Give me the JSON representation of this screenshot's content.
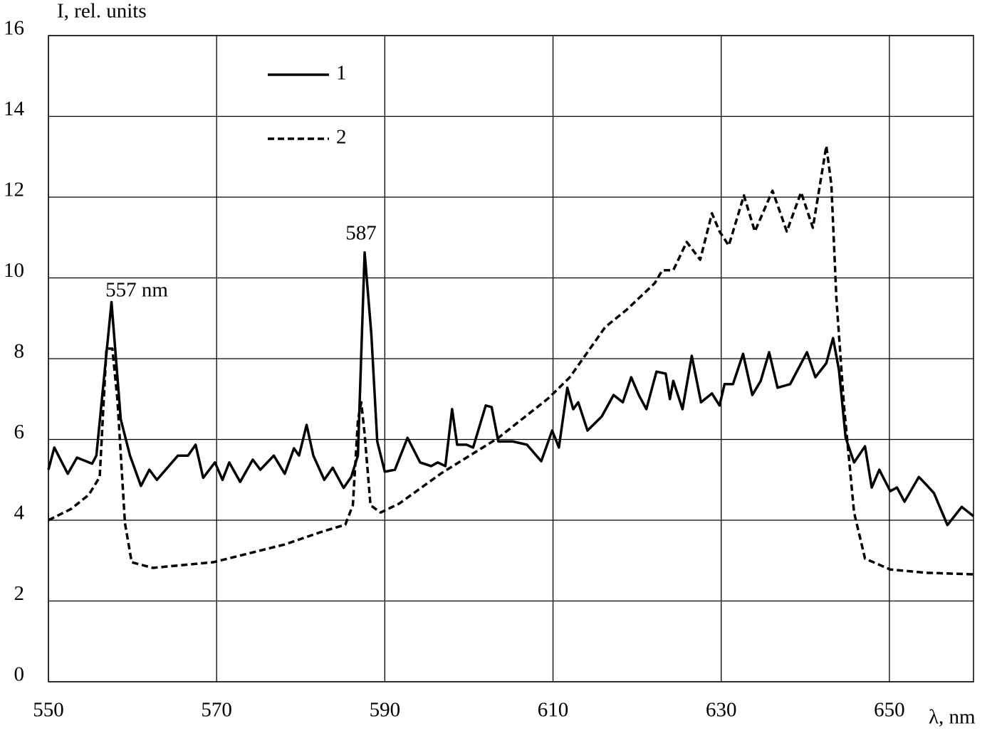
{
  "chart_data": {
    "type": "line",
    "ylabel": "I, rel. units",
    "xlabel": "λ, nm",
    "annotations": [
      "557 nm",
      "587"
    ],
    "xlim": [
      550,
      660
    ],
    "xticks": [
      550,
      570,
      590,
      610,
      630,
      650
    ],
    "ylim": [
      0,
      16
    ],
    "yticks": [
      0,
      2,
      4,
      6,
      8,
      10,
      12,
      14,
      16
    ],
    "grid": true,
    "series": [
      {
        "name": "1",
        "color": "#000000",
        "line_style": "solid",
        "x": [
          550,
          550.7,
          552.3,
          553.4,
          555.2,
          555.7,
          557.5,
          558.6,
          559.7,
          561,
          562,
          562.9,
          565.4,
          566.6,
          567.5,
          568.4,
          569.8,
          570.7,
          571.5,
          572.8,
          574.3,
          575.2,
          576.8,
          578.1,
          579.2,
          579.8,
          580.7,
          581.5,
          582.8,
          583.8,
          585.1,
          586,
          586.8,
          587.6,
          588.4,
          589.1,
          590,
          591.2,
          592.7,
          594.2,
          595.5,
          596.3,
          597.2,
          598,
          598.6,
          599.7,
          600.5,
          602,
          602.7,
          603.5,
          605.2,
          606.9,
          608.6,
          609.9,
          610.7,
          611.7,
          612.4,
          613,
          614.1,
          615.8,
          617.2,
          618.3,
          619.3,
          620.2,
          621.1,
          622.3,
          623.4,
          623.9,
          624.3,
          625.4,
          626.5,
          627.6,
          628.9,
          629.8,
          630.4,
          631.4,
          632.6,
          633.7,
          634.7,
          635.7,
          636.7,
          638.2,
          640.2,
          641.2,
          642.5,
          643.3,
          644,
          644.8,
          645.8,
          647.1,
          647.9,
          648.8,
          650.1,
          650.9,
          651.8,
          653.5,
          654.3,
          655.3,
          656.9,
          658.6,
          660
        ],
        "values": [
          5.25,
          5.8,
          5.15,
          5.55,
          5.4,
          5.6,
          9.4,
          6.5,
          5.6,
          4.85,
          5.25,
          5.0,
          5.6,
          5.6,
          5.87,
          5.05,
          5.43,
          5.0,
          5.43,
          4.95,
          5.5,
          5.25,
          5.6,
          5.15,
          5.78,
          5.6,
          6.36,
          5.6,
          5.0,
          5.3,
          4.8,
          5.07,
          5.6,
          10.63,
          8.6,
          5.95,
          5.2,
          5.25,
          6.04,
          5.43,
          5.34,
          5.43,
          5.34,
          6.75,
          5.87,
          5.87,
          5.8,
          6.84,
          6.8,
          5.95,
          5.95,
          5.87,
          5.46,
          6.22,
          5.8,
          7.28,
          6.75,
          6.92,
          6.22,
          6.57,
          7.1,
          6.92,
          7.54,
          7.1,
          6.75,
          7.68,
          7.63,
          7.0,
          7.45,
          6.75,
          8.07,
          6.92,
          7.14,
          6.84,
          7.37,
          7.37,
          8.12,
          7.1,
          7.45,
          8.16,
          7.28,
          7.37,
          8.16,
          7.54,
          7.89,
          8.51,
          7.72,
          6.04,
          5.43,
          5.83,
          4.81,
          5.25,
          4.72,
          4.81,
          4.46,
          5.07,
          4.9,
          4.67,
          3.88,
          4.33,
          4.1
        ]
      },
      {
        "name": "2",
        "color": "#000000",
        "line_style": "dashed",
        "x": [
          550,
          552.7,
          554.8,
          556.1,
          556.9,
          557.6,
          558.2,
          559.1,
          559.9,
          562.4,
          569.6,
          578.1,
          582.3,
          585.3,
          586.2,
          586.8,
          587.2,
          587.6,
          588.3,
          589.5,
          591.7,
          596.7,
          603.5,
          609.4,
          612,
          616.2,
          618.8,
          622.1,
          623,
          624.3,
          625.9,
          627.5,
          628.9,
          629.8,
          630.9,
          632.7,
          634,
          636.1,
          637.8,
          639.5,
          640.9,
          642.5,
          643.1,
          643.7,
          644.6,
          645.8,
          647.1,
          650.1,
          654.3,
          660
        ],
        "values": [
          4.0,
          4.28,
          4.63,
          5.07,
          8.25,
          8.25,
          7.0,
          3.93,
          2.96,
          2.82,
          2.96,
          3.4,
          3.7,
          3.89,
          4.37,
          6.48,
          6.92,
          6.13,
          4.37,
          4.19,
          4.41,
          5.16,
          6.04,
          7.01,
          7.54,
          8.78,
          9.22,
          9.87,
          10.19,
          10.19,
          10.89,
          10.45,
          11.6,
          11.15,
          10.8,
          12.04,
          11.15,
          12.16,
          11.15,
          12.12,
          11.24,
          13.27,
          12.3,
          9.48,
          6.84,
          4.19,
          3.05,
          2.78,
          2.7,
          2.66
        ]
      }
    ]
  }
}
